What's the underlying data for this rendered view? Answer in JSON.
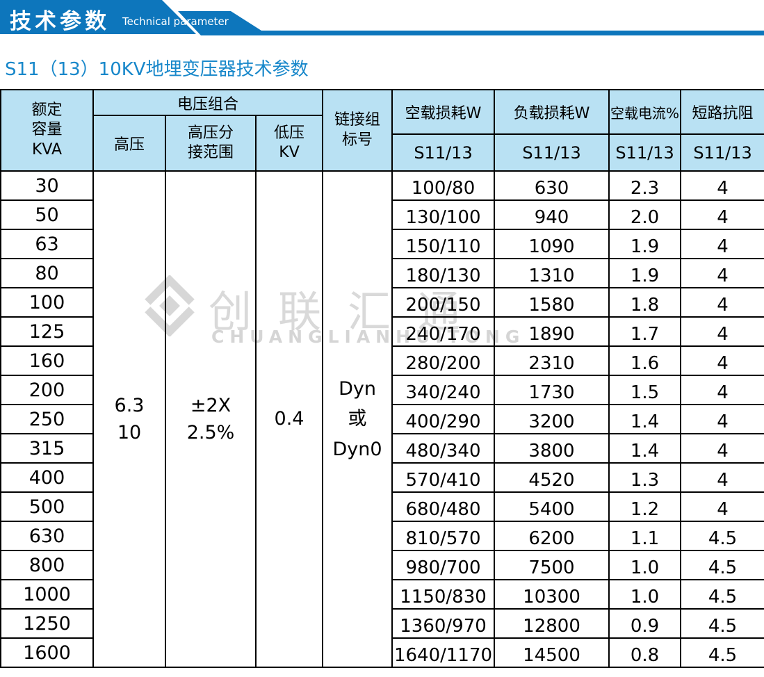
{
  "banner": {
    "title": "技术参数",
    "subtitle": "Technical parameter"
  },
  "page_title": "S11（13）10KV地埋变压器技术参数",
  "watermark": {
    "cn": "创联汇通",
    "en": "CHUANGLIANHUITONG"
  },
  "colors": {
    "banner_blue": "#0d76bc",
    "title_blue": "#1787ca",
    "header_bg": "#b9e1f3",
    "border_black": "#000000",
    "watermark_gray": "#d9d9d9"
  },
  "table": {
    "headers": {
      "capacity": "额定\n容量\nKVA",
      "voltage_group": "电压组合",
      "hv": "高压",
      "hv_tap": "高压分\n接范围",
      "lv": "低压\nKV",
      "vector_group": "链接组\n标号",
      "no_load_loss": "空载损耗W",
      "load_loss": "负载损耗W",
      "no_load_current": "空载电流%",
      "impedance": "短路抗阻",
      "sub": "S11/13"
    },
    "merged": [
      {
        "name": "hv",
        "text": "6.3\n10"
      },
      {
        "name": "hv-tap",
        "text": "±2X\n2.5%"
      },
      {
        "name": "lv",
        "text": "0.4"
      },
      {
        "name": "vector-group",
        "text": "Dyn\n或\nDyn0"
      }
    ],
    "rows": [
      {
        "capacity": "30",
        "no_load_loss": "100/80",
        "load_loss": "630",
        "no_load_current": "2.3",
        "impedance": "4"
      },
      {
        "capacity": "50",
        "no_load_loss": "130/100",
        "load_loss": "940",
        "no_load_current": "2.0",
        "impedance": "4"
      },
      {
        "capacity": "63",
        "no_load_loss": "150/110",
        "load_loss": "1090",
        "no_load_current": "1.9",
        "impedance": "4"
      },
      {
        "capacity": "80",
        "no_load_loss": "180/130",
        "load_loss": "1310",
        "no_load_current": "1.9",
        "impedance": "4"
      },
      {
        "capacity": "100",
        "no_load_loss": "200/150",
        "load_loss": "1580",
        "no_load_current": "1.8",
        "impedance": "4"
      },
      {
        "capacity": "125",
        "no_load_loss": "240/170",
        "load_loss": "1890",
        "no_load_current": "1.7",
        "impedance": "4"
      },
      {
        "capacity": "160",
        "no_load_loss": "280/200",
        "load_loss": "2310",
        "no_load_current": "1.6",
        "impedance": "4"
      },
      {
        "capacity": "200",
        "no_load_loss": "340/240",
        "load_loss": "1730",
        "no_load_current": "1.5",
        "impedance": "4"
      },
      {
        "capacity": "250",
        "no_load_loss": "400/290",
        "load_loss": "3200",
        "no_load_current": "1.4",
        "impedance": "4"
      },
      {
        "capacity": "315",
        "no_load_loss": "480/340",
        "load_loss": "3800",
        "no_load_current": "1.4",
        "impedance": "4"
      },
      {
        "capacity": "400",
        "no_load_loss": "570/410",
        "load_loss": "4520",
        "no_load_current": "1.3",
        "impedance": "4"
      },
      {
        "capacity": "500",
        "no_load_loss": "680/480",
        "load_loss": "5400",
        "no_load_current": "1.2",
        "impedance": "4"
      },
      {
        "capacity": "630",
        "no_load_loss": "810/570",
        "load_loss": "6200",
        "no_load_current": "1.1",
        "impedance": "4.5"
      },
      {
        "capacity": "800",
        "no_load_loss": "980/700",
        "load_loss": "7500",
        "no_load_current": "1.0",
        "impedance": "4.5"
      },
      {
        "capacity": "1000",
        "no_load_loss": "1150/830",
        "load_loss": "10300",
        "no_load_current": "1.0",
        "impedance": "4.5"
      },
      {
        "capacity": "1250",
        "no_load_loss": "1360/970",
        "load_loss": "12800",
        "no_load_current": "0.9",
        "impedance": "4.5"
      },
      {
        "capacity": "1600",
        "no_load_loss": "1640/1170",
        "load_loss": "14500",
        "no_load_current": "0.8",
        "impedance": "4.5"
      }
    ]
  }
}
